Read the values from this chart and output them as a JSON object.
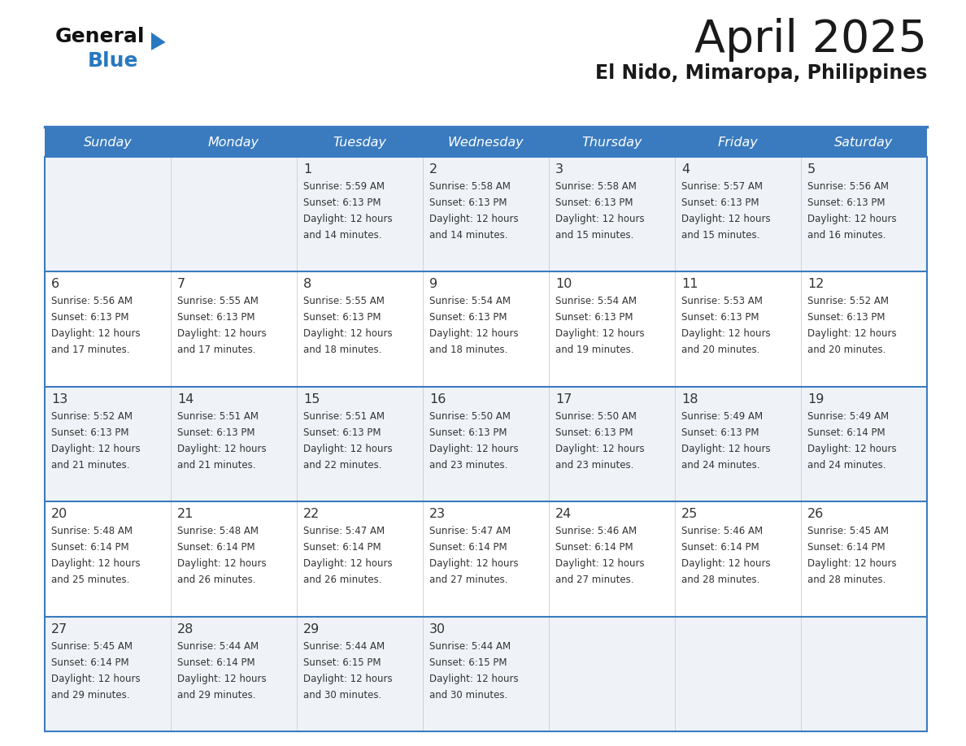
{
  "title": "April 2025",
  "subtitle": "El Nido, Mimaropa, Philippines",
  "header_bg_color": "#3a7bbf",
  "header_text_color": "#ffffff",
  "day_names": [
    "Sunday",
    "Monday",
    "Tuesday",
    "Wednesday",
    "Thursday",
    "Friday",
    "Saturday"
  ],
  "row_bg_even": "#eff3f8",
  "row_bg_odd": "#ffffff",
  "cell_text_color": "#333333",
  "border_color": "#3a7bbf",
  "title_color": "#1a1a1a",
  "subtitle_color": "#1a1a1a",
  "logo_general_color": "#111111",
  "logo_blue_color": "#2878c0",
  "fig_width": 11.88,
  "fig_height": 9.18,
  "weeks": [
    [
      {
        "day": 0,
        "info": ""
      },
      {
        "day": 0,
        "info": ""
      },
      {
        "day": 1,
        "info": "Sunrise: 5:59 AM\nSunset: 6:13 PM\nDaylight: 12 hours\nand 14 minutes."
      },
      {
        "day": 2,
        "info": "Sunrise: 5:58 AM\nSunset: 6:13 PM\nDaylight: 12 hours\nand 14 minutes."
      },
      {
        "day": 3,
        "info": "Sunrise: 5:58 AM\nSunset: 6:13 PM\nDaylight: 12 hours\nand 15 minutes."
      },
      {
        "day": 4,
        "info": "Sunrise: 5:57 AM\nSunset: 6:13 PM\nDaylight: 12 hours\nand 15 minutes."
      },
      {
        "day": 5,
        "info": "Sunrise: 5:56 AM\nSunset: 6:13 PM\nDaylight: 12 hours\nand 16 minutes."
      }
    ],
    [
      {
        "day": 6,
        "info": "Sunrise: 5:56 AM\nSunset: 6:13 PM\nDaylight: 12 hours\nand 17 minutes."
      },
      {
        "day": 7,
        "info": "Sunrise: 5:55 AM\nSunset: 6:13 PM\nDaylight: 12 hours\nand 17 minutes."
      },
      {
        "day": 8,
        "info": "Sunrise: 5:55 AM\nSunset: 6:13 PM\nDaylight: 12 hours\nand 18 minutes."
      },
      {
        "day": 9,
        "info": "Sunrise: 5:54 AM\nSunset: 6:13 PM\nDaylight: 12 hours\nand 18 minutes."
      },
      {
        "day": 10,
        "info": "Sunrise: 5:54 AM\nSunset: 6:13 PM\nDaylight: 12 hours\nand 19 minutes."
      },
      {
        "day": 11,
        "info": "Sunrise: 5:53 AM\nSunset: 6:13 PM\nDaylight: 12 hours\nand 20 minutes."
      },
      {
        "day": 12,
        "info": "Sunrise: 5:52 AM\nSunset: 6:13 PM\nDaylight: 12 hours\nand 20 minutes."
      }
    ],
    [
      {
        "day": 13,
        "info": "Sunrise: 5:52 AM\nSunset: 6:13 PM\nDaylight: 12 hours\nand 21 minutes."
      },
      {
        "day": 14,
        "info": "Sunrise: 5:51 AM\nSunset: 6:13 PM\nDaylight: 12 hours\nand 21 minutes."
      },
      {
        "day": 15,
        "info": "Sunrise: 5:51 AM\nSunset: 6:13 PM\nDaylight: 12 hours\nand 22 minutes."
      },
      {
        "day": 16,
        "info": "Sunrise: 5:50 AM\nSunset: 6:13 PM\nDaylight: 12 hours\nand 23 minutes."
      },
      {
        "day": 17,
        "info": "Sunrise: 5:50 AM\nSunset: 6:13 PM\nDaylight: 12 hours\nand 23 minutes."
      },
      {
        "day": 18,
        "info": "Sunrise: 5:49 AM\nSunset: 6:13 PM\nDaylight: 12 hours\nand 24 minutes."
      },
      {
        "day": 19,
        "info": "Sunrise: 5:49 AM\nSunset: 6:14 PM\nDaylight: 12 hours\nand 24 minutes."
      }
    ],
    [
      {
        "day": 20,
        "info": "Sunrise: 5:48 AM\nSunset: 6:14 PM\nDaylight: 12 hours\nand 25 minutes."
      },
      {
        "day": 21,
        "info": "Sunrise: 5:48 AM\nSunset: 6:14 PM\nDaylight: 12 hours\nand 26 minutes."
      },
      {
        "day": 22,
        "info": "Sunrise: 5:47 AM\nSunset: 6:14 PM\nDaylight: 12 hours\nand 26 minutes."
      },
      {
        "day": 23,
        "info": "Sunrise: 5:47 AM\nSunset: 6:14 PM\nDaylight: 12 hours\nand 27 minutes."
      },
      {
        "day": 24,
        "info": "Sunrise: 5:46 AM\nSunset: 6:14 PM\nDaylight: 12 hours\nand 27 minutes."
      },
      {
        "day": 25,
        "info": "Sunrise: 5:46 AM\nSunset: 6:14 PM\nDaylight: 12 hours\nand 28 minutes."
      },
      {
        "day": 26,
        "info": "Sunrise: 5:45 AM\nSunset: 6:14 PM\nDaylight: 12 hours\nand 28 minutes."
      }
    ],
    [
      {
        "day": 27,
        "info": "Sunrise: 5:45 AM\nSunset: 6:14 PM\nDaylight: 12 hours\nand 29 minutes."
      },
      {
        "day": 28,
        "info": "Sunrise: 5:44 AM\nSunset: 6:14 PM\nDaylight: 12 hours\nand 29 minutes."
      },
      {
        "day": 29,
        "info": "Sunrise: 5:44 AM\nSunset: 6:15 PM\nDaylight: 12 hours\nand 30 minutes."
      },
      {
        "day": 30,
        "info": "Sunrise: 5:44 AM\nSunset: 6:15 PM\nDaylight: 12 hours\nand 30 minutes."
      },
      {
        "day": 0,
        "info": ""
      },
      {
        "day": 0,
        "info": ""
      },
      {
        "day": 0,
        "info": ""
      }
    ]
  ]
}
